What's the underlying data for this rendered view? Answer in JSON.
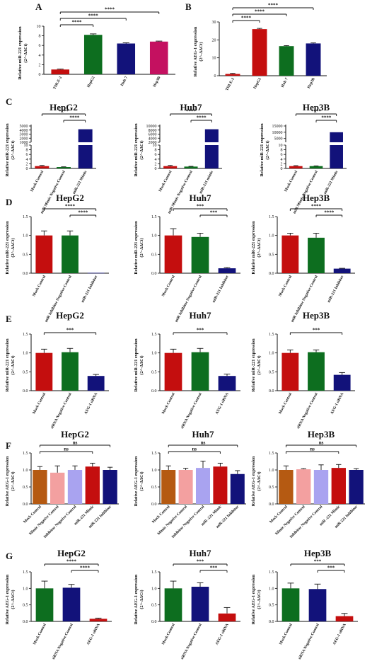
{
  "colors": {
    "red": "#c40e0e",
    "green": "#0d6e1f",
    "navy": "#12127a",
    "magenta": "#c41160",
    "brown": "#b55a12",
    "pink": "#f3a0a0",
    "lavender": "#a9a3f0",
    "error": "#111111"
  },
  "chart_data": [
    {
      "panel": "A",
      "type": "bar",
      "title": "",
      "ylabel": "Relative miR-221 expression (2^-ΔΔCt)",
      "ylim": [
        0,
        10
      ],
      "yticks": [
        0,
        2,
        4,
        6,
        8,
        10
      ],
      "categories": [
        "THLE-2",
        "HepG2",
        "Huh 7",
        "Hep3B"
      ],
      "values": [
        1.0,
        8.2,
        6.4,
        6.8
      ],
      "errors": [
        0.1,
        0.2,
        0.15,
        0.1
      ],
      "colors": [
        "#c40e0e",
        "#0d6e1f",
        "#12127a",
        "#c41160"
      ],
      "sig": [
        {
          "from": 0,
          "to": 1,
          "label": "****"
        },
        {
          "from": 0,
          "to": 2,
          "label": "****"
        },
        {
          "from": 0,
          "to": 3,
          "label": "****"
        }
      ]
    },
    {
      "panel": "B",
      "type": "bar",
      "title": "",
      "ylabel": "Relative AEG-1 expression (2^-ΔΔCt)",
      "ylim": [
        0,
        30
      ],
      "yticks": [
        0,
        10,
        20,
        30
      ],
      "categories": [
        "THLE-2",
        "HepG2",
        "Huh 7",
        "Hep3B"
      ],
      "values": [
        1.0,
        26.0,
        16.5,
        18.0
      ],
      "errors": [
        0.3,
        0.4,
        0.3,
        0.3
      ],
      "colors": [
        "#c40e0e",
        "#c40e0e",
        "#0d6e1f",
        "#12127a"
      ],
      "sig": [
        {
          "from": 0,
          "to": 1,
          "label": "****"
        },
        {
          "from": 0,
          "to": 2,
          "label": "****"
        },
        {
          "from": 0,
          "to": 3,
          "label": "****"
        }
      ]
    },
    {
      "panel": "C",
      "type": "bar",
      "broken_axis": true,
      "title": "HepG2",
      "ylabel": "Relative miR-221 expression (2^-ΔΔCt)",
      "low_ticks": [
        0,
        2,
        4,
        6,
        8,
        10
      ],
      "high_ticks": [
        1000,
        2000,
        3000,
        4000,
        5000
      ],
      "high_range": [
        1000,
        5000
      ],
      "categories": [
        "Mock Control",
        "miR Mimic Negative Control",
        "miR-221 Mimic"
      ],
      "values": [
        1.0,
        0.6,
        4200
      ],
      "errors": [
        0.3,
        0.1,
        0
      ],
      "colors": [
        "#c40e0e",
        "#0d6e1f",
        "#12127a"
      ],
      "sig": [
        {
          "from": 0,
          "to": 2,
          "label": "****"
        },
        {
          "from": 1,
          "to": 2,
          "label": "****"
        }
      ]
    },
    {
      "panel": "C",
      "type": "bar",
      "broken_axis": true,
      "title": "Huh7",
      "ylabel": "Relative miR-221 expression (2^-ΔΔCt)",
      "low_ticks": [
        0,
        2,
        4,
        6,
        8,
        10
      ],
      "high_ticks": [
        2000,
        4000,
        6000,
        8000,
        10000
      ],
      "high_range": [
        2000,
        10000
      ],
      "categories": [
        "Mock Control",
        "miR Mimic Negative Control",
        "miR-221 mimic"
      ],
      "values": [
        1.0,
        0.8,
        8400
      ],
      "errors": [
        0.3,
        0.1,
        0
      ],
      "colors": [
        "#c40e0e",
        "#0d6e1f",
        "#12127a"
      ],
      "sig": [
        {
          "from": 0,
          "to": 2,
          "label": "****"
        },
        {
          "from": 1,
          "to": 2,
          "label": "****"
        }
      ]
    },
    {
      "panel": "C",
      "type": "bar",
      "broken_axis": true,
      "title": "Hep3B",
      "ylabel": "Relative miR-221 expression (2^-ΔΔCt)",
      "low_ticks": [
        0,
        2,
        4,
        6,
        8,
        10
      ],
      "high_ticks": [
        5000,
        10000,
        15000
      ],
      "high_range": [
        2000,
        15000
      ],
      "categories": [
        "Mock Control",
        "miR Mimic Negative Control",
        "miR-221 Mimic"
      ],
      "values": [
        1.0,
        1.0,
        10000
      ],
      "errors": [
        0.2,
        0.1,
        0
      ],
      "colors": [
        "#c40e0e",
        "#0d6e1f",
        "#12127a"
      ],
      "sig": [
        {
          "from": 0,
          "to": 2,
          "label": "****"
        },
        {
          "from": 1,
          "to": 2,
          "label": "****"
        }
      ]
    },
    {
      "panel": "D",
      "type": "bar",
      "title": "HepG2",
      "ylabel": "Relative miR-221 expression (2^-ΔΔCt)",
      "ylim": [
        0,
        1.5
      ],
      "yticks": [
        0.0,
        0.5,
        1.0,
        1.5
      ],
      "categories": [
        "Mock Control",
        "miR Inhibitor Negative Control",
        "miR-221 Inhibitor"
      ],
      "values": [
        1.0,
        1.0,
        0.01
      ],
      "errors": [
        0.12,
        0.12,
        0.0
      ],
      "colors": [
        "#c40e0e",
        "#0d6e1f",
        "#12127a"
      ],
      "sig": [
        {
          "from": 0,
          "to": 2,
          "label": "****"
        },
        {
          "from": 1,
          "to": 2,
          "label": "****"
        }
      ]
    },
    {
      "panel": "D",
      "type": "bar",
      "title": "Huh7",
      "ylabel": "Relative miR-221 expression (2^-ΔΔCt)",
      "ylim": [
        0,
        1.5
      ],
      "yticks": [
        0.0,
        0.5,
        1.0,
        1.5
      ],
      "categories": [
        "Mock Control",
        "miR Inhibitor Negative Control",
        "miR-221 Inhibitor"
      ],
      "values": [
        1.0,
        0.96,
        0.13
      ],
      "errors": [
        0.18,
        0.1,
        0.02
      ],
      "colors": [
        "#c40e0e",
        "#0d6e1f",
        "#12127a"
      ],
      "sig": [
        {
          "from": 0,
          "to": 2,
          "label": "***"
        },
        {
          "from": 1,
          "to": 2,
          "label": "***"
        }
      ]
    },
    {
      "panel": "D",
      "type": "bar",
      "title": "Hep3B",
      "ylabel": "Relative miR-221 expression (2^-ΔΔCt)",
      "ylim": [
        0,
        1.5
      ],
      "yticks": [
        0.0,
        0.5,
        1.0,
        1.5
      ],
      "categories": [
        "Mock Control",
        "miR Inhibitor Negative Control",
        "miR-221 Inhibitor"
      ],
      "values": [
        1.0,
        0.94,
        0.12
      ],
      "errors": [
        0.06,
        0.12,
        0.01
      ],
      "colors": [
        "#c40e0e",
        "#0d6e1f",
        "#12127a"
      ],
      "sig": [
        {
          "from": 0,
          "to": 2,
          "label": "****"
        },
        {
          "from": 1,
          "to": 2,
          "label": "****"
        }
      ]
    },
    {
      "panel": "E",
      "type": "bar",
      "title": "HepG2",
      "ylabel": "Relative miR-221 expression (2^-ΔΔCt)",
      "ylim": [
        0,
        1.5
      ],
      "yticks": [
        0.0,
        0.5,
        1.0,
        1.5
      ],
      "categories": [
        "Mock Control",
        "siRNA Negative Control",
        "AEG-1 siRNA"
      ],
      "values": [
        1.0,
        1.02,
        0.39
      ],
      "errors": [
        0.1,
        0.1,
        0.04
      ],
      "colors": [
        "#c40e0e",
        "#0d6e1f",
        "#12127a"
      ],
      "sig": [
        {
          "from": 0,
          "to": 2,
          "label": "***"
        }
      ]
    },
    {
      "panel": "E",
      "type": "bar",
      "title": "Huh7",
      "ylabel": "Relative miR-221 expression (2^-ΔΔCt)",
      "ylim": [
        0,
        1.5
      ],
      "yticks": [
        0.0,
        0.5,
        1.0,
        1.5
      ],
      "categories": [
        "Mock Control",
        "siRNA Negative Control",
        "AEG-1 siRNA"
      ],
      "values": [
        1.0,
        1.02,
        0.39
      ],
      "errors": [
        0.1,
        0.1,
        0.05
      ],
      "colors": [
        "#c40e0e",
        "#0d6e1f",
        "#12127a"
      ],
      "sig": [
        {
          "from": 0,
          "to": 2,
          "label": "***"
        }
      ]
    },
    {
      "panel": "E",
      "type": "bar",
      "title": "Hep3B",
      "ylabel": "Relative miR-221 expression (2^-ΔΔCt)",
      "ylim": [
        0,
        1.5
      ],
      "yticks": [
        0.0,
        0.5,
        1.0,
        1.5
      ],
      "categories": [
        "Mock Control",
        "siRNA Negative Control",
        "AEG-1 siRNA"
      ],
      "values": [
        1.0,
        1.02,
        0.42
      ],
      "errors": [
        0.08,
        0.06,
        0.06
      ],
      "colors": [
        "#c40e0e",
        "#0d6e1f",
        "#12127a"
      ],
      "sig": [
        {
          "from": 0,
          "to": 2,
          "label": "***"
        }
      ]
    },
    {
      "panel": "F",
      "type": "bar",
      "title": "HepG2",
      "ylabel": "Relative AEG-1 expression (2^-ΔΔCt)",
      "ylim": [
        0,
        1.5
      ],
      "yticks": [
        0.0,
        0.5,
        1.0,
        1.5
      ],
      "categories": [
        "Mock Control",
        "Mimic Negative Control",
        "Inhibitor Negative Control",
        "miR-221 Mimic",
        "miR-221 Inhibitor"
      ],
      "values": [
        1.0,
        0.92,
        1.0,
        1.1,
        1.0
      ],
      "errors": [
        0.1,
        0.2,
        0.12,
        0.1,
        0.08
      ],
      "colors": [
        "#b55a12",
        "#f3a0a0",
        "#a9a3f0",
        "#c40e0e",
        "#12127a"
      ],
      "sig": [
        {
          "from": 0,
          "to": 3,
          "label": "ns"
        },
        {
          "from": 0,
          "to": 4,
          "label": "ns"
        }
      ]
    },
    {
      "panel": "F",
      "type": "bar",
      "title": "Huh7",
      "ylabel": "Relative AEG-1 expression (2^-ΔΔCt)",
      "ylim": [
        0,
        1.5
      ],
      "yticks": [
        0.0,
        0.5,
        1.0,
        1.5
      ],
      "categories": [
        "Mock Control",
        "Mimic Negative Control",
        "Inhibitor Negative Control",
        "miR -221 Mimic",
        "miR-221 Inhibitor"
      ],
      "values": [
        1.0,
        1.0,
        1.06,
        1.1,
        0.88
      ],
      "errors": [
        0.12,
        0.05,
        0.2,
        0.1,
        0.1
      ],
      "colors": [
        "#b55a12",
        "#f3a0a0",
        "#a9a3f0",
        "#c40e0e",
        "#12127a"
      ],
      "sig": [
        {
          "from": 0,
          "to": 3,
          "label": "ns"
        },
        {
          "from": 0,
          "to": 4,
          "label": "ns"
        }
      ]
    },
    {
      "panel": "F",
      "type": "bar",
      "title": "Hep3B",
      "ylabel": "Relative AEG-1 expression (2^-ΔΔCt)",
      "ylim": [
        0,
        1.5
      ],
      "yticks": [
        0.0,
        0.5,
        1.0,
        1.5
      ],
      "categories": [
        "Mock Control",
        "Mimic Negative Control",
        "Inhibitor Negative Control",
        "miR -221 Mimic",
        "miR-221 Inhibitor"
      ],
      "values": [
        1.0,
        1.02,
        1.0,
        1.06,
        1.0
      ],
      "errors": [
        0.12,
        0.02,
        0.15,
        0.1,
        0.04
      ],
      "colors": [
        "#b55a12",
        "#f3a0a0",
        "#a9a3f0",
        "#c40e0e",
        "#12127a"
      ],
      "sig": [
        {
          "from": 0,
          "to": 3,
          "label": "ns"
        },
        {
          "from": 0,
          "to": 4,
          "label": "ns"
        }
      ]
    },
    {
      "panel": "G",
      "type": "bar",
      "title": "HepG2",
      "ylabel": "Relative AEG-1 expression (2^-ΔΔCt)",
      "ylim": [
        0,
        1.5
      ],
      "yticks": [
        0.0,
        0.5,
        1.0,
        1.5
      ],
      "categories": [
        "Mock Control",
        "siRNA Negative Control",
        "AEG-1 siRNA"
      ],
      "values": [
        1.0,
        1.02,
        0.08
      ],
      "errors": [
        0.22,
        0.1,
        0.02
      ],
      "colors": [
        "#0d6e1f",
        "#12127a",
        "#c40e0e"
      ],
      "sig": [
        {
          "from": 0,
          "to": 2,
          "label": "****"
        },
        {
          "from": 1,
          "to": 2,
          "label": "****"
        }
      ]
    },
    {
      "panel": "G",
      "type": "bar",
      "title": "Huh7",
      "ylabel": "Relative AEG-1 expression (2^-ΔΔCt)",
      "ylim": [
        0,
        1.5
      ],
      "yticks": [
        0.0,
        0.5,
        1.0,
        1.5
      ],
      "categories": [
        "Mock Control",
        "siRNA Negative Control",
        "AEG-1 siRNA"
      ],
      "values": [
        1.0,
        1.05,
        0.24
      ],
      "errors": [
        0.22,
        0.12,
        0.18
      ],
      "colors": [
        "#0d6e1f",
        "#12127a",
        "#c40e0e"
      ],
      "sig": [
        {
          "from": 0,
          "to": 2,
          "label": "***"
        },
        {
          "from": 1,
          "to": 2,
          "label": "***"
        }
      ]
    },
    {
      "panel": "G",
      "type": "bar",
      "title": "Hep3B",
      "ylabel": "Relative AEG-1 expression (2^-ΔΔCt)",
      "ylim": [
        0,
        1.5
      ],
      "yticks": [
        0.0,
        0.5,
        1.0,
        1.5
      ],
      "categories": [
        "Mock Control",
        "siRNA Negative Control",
        "AEG-1 siRNA"
      ],
      "values": [
        1.0,
        0.98,
        0.16
      ],
      "errors": [
        0.16,
        0.15,
        0.08
      ],
      "colors": [
        "#0d6e1f",
        "#12127a",
        "#c40e0e"
      ],
      "sig": [
        {
          "from": 0,
          "to": 2,
          "label": "***"
        },
        {
          "from": 1,
          "to": 2,
          "label": "***"
        }
      ]
    }
  ]
}
